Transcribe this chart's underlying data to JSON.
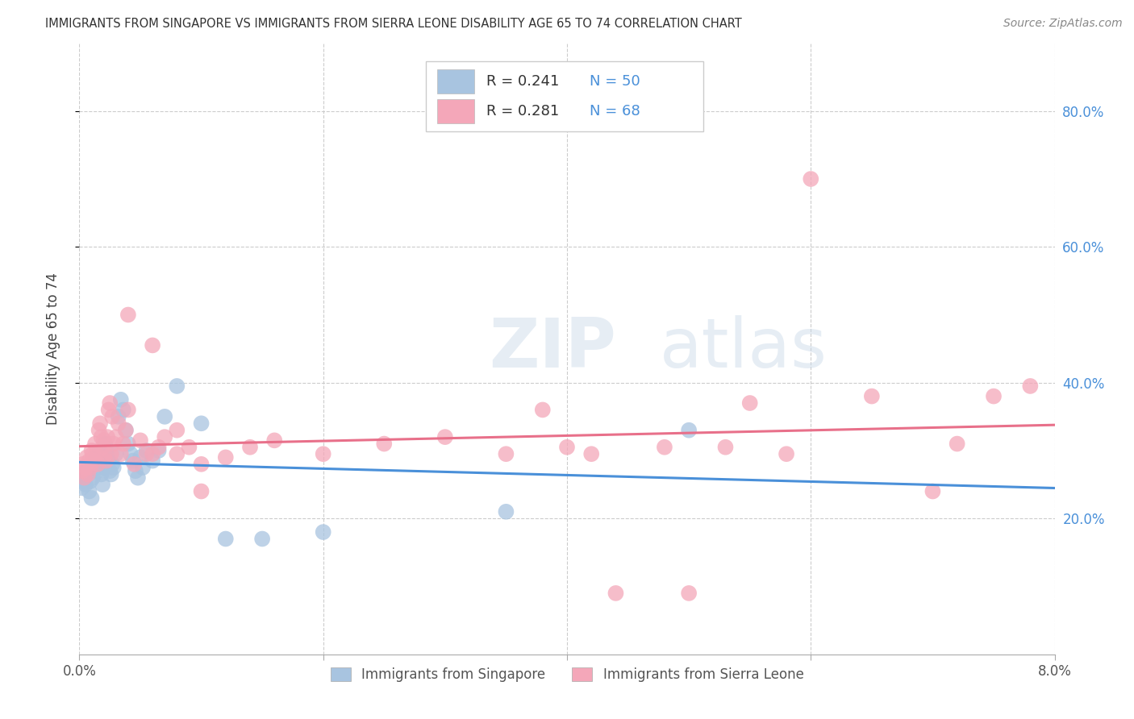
{
  "title": "IMMIGRANTS FROM SINGAPORE VS IMMIGRANTS FROM SIERRA LEONE DISABILITY AGE 65 TO 74 CORRELATION CHART",
  "source": "Source: ZipAtlas.com",
  "ylabel": "Disability Age 65 to 74",
  "singapore_R": "0.241",
  "singapore_N": "50",
  "sierra_leone_R": "0.281",
  "sierra_leone_N": "68",
  "singapore_color": "#a8c4e0",
  "sierra_leone_color": "#f4a7b9",
  "singapore_line_color": "#4a90d9",
  "sierra_leone_line_color": "#e8708a",
  "blue_text_color": "#4a90d9",
  "singapore_scatter_x": [
    0.0002,
    0.0003,
    0.0004,
    0.0005,
    0.0006,
    0.0007,
    0.0008,
    0.0009,
    0.001,
    0.0011,
    0.0012,
    0.0013,
    0.0014,
    0.0015,
    0.0016,
    0.0017,
    0.0018,
    0.0019,
    0.002,
    0.0021,
    0.0022,
    0.0023,
    0.0024,
    0.0025,
    0.0026,
    0.0027,
    0.0028,
    0.003,
    0.0032,
    0.0034,
    0.0036,
    0.0038,
    0.004,
    0.0042,
    0.0044,
    0.0046,
    0.0048,
    0.005,
    0.0052,
    0.0055,
    0.006,
    0.0065,
    0.007,
    0.008,
    0.01,
    0.012,
    0.015,
    0.02,
    0.035,
    0.05
  ],
  "singapore_scatter_y": [
    0.245,
    0.255,
    0.26,
    0.25,
    0.27,
    0.265,
    0.24,
    0.255,
    0.23,
    0.26,
    0.28,
    0.275,
    0.29,
    0.27,
    0.295,
    0.285,
    0.265,
    0.25,
    0.275,
    0.31,
    0.3,
    0.295,
    0.285,
    0.27,
    0.265,
    0.28,
    0.275,
    0.295,
    0.35,
    0.375,
    0.36,
    0.33,
    0.31,
    0.295,
    0.285,
    0.27,
    0.26,
    0.29,
    0.275,
    0.3,
    0.285,
    0.3,
    0.35,
    0.395,
    0.34,
    0.17,
    0.17,
    0.18,
    0.21,
    0.33
  ],
  "sierra_leone_scatter_x": [
    0.0002,
    0.0003,
    0.0004,
    0.0005,
    0.0006,
    0.0007,
    0.0008,
    0.0009,
    0.001,
    0.0011,
    0.0012,
    0.0013,
    0.0014,
    0.0015,
    0.0016,
    0.0017,
    0.0018,
    0.0019,
    0.002,
    0.0021,
    0.0022,
    0.0023,
    0.0024,
    0.0025,
    0.0026,
    0.0027,
    0.0028,
    0.003,
    0.0032,
    0.0034,
    0.0036,
    0.0038,
    0.004,
    0.0045,
    0.005,
    0.0055,
    0.006,
    0.0065,
    0.007,
    0.008,
    0.009,
    0.01,
    0.012,
    0.014,
    0.016,
    0.02,
    0.025,
    0.03,
    0.035,
    0.038,
    0.04,
    0.042,
    0.044,
    0.048,
    0.05,
    0.053,
    0.055,
    0.058,
    0.06,
    0.065,
    0.07,
    0.072,
    0.075,
    0.078,
    0.004,
    0.006,
    0.008,
    0.01
  ],
  "sierra_leone_scatter_y": [
    0.27,
    0.28,
    0.26,
    0.275,
    0.29,
    0.265,
    0.285,
    0.275,
    0.3,
    0.295,
    0.285,
    0.31,
    0.295,
    0.28,
    0.33,
    0.34,
    0.32,
    0.305,
    0.315,
    0.295,
    0.285,
    0.32,
    0.36,
    0.37,
    0.295,
    0.35,
    0.31,
    0.32,
    0.34,
    0.295,
    0.31,
    0.33,
    0.36,
    0.28,
    0.315,
    0.295,
    0.295,
    0.305,
    0.32,
    0.33,
    0.305,
    0.28,
    0.29,
    0.305,
    0.315,
    0.295,
    0.31,
    0.32,
    0.295,
    0.36,
    0.305,
    0.295,
    0.09,
    0.305,
    0.09,
    0.305,
    0.37,
    0.295,
    0.7,
    0.38,
    0.24,
    0.31,
    0.38,
    0.395,
    0.5,
    0.455,
    0.295,
    0.24
  ],
  "xlim": [
    0.0,
    0.08
  ],
  "ylim": [
    0.0,
    0.9
  ],
  "xticks": [
    0.0,
    0.02,
    0.04,
    0.06,
    0.08
  ],
  "yticks_right": [
    0.2,
    0.4,
    0.6,
    0.8
  ],
  "ytick_labels_right": [
    "20.0%",
    "40.0%",
    "60.0%",
    "80.0%"
  ],
  "watermark": "ZIPatlas",
  "legend_label_singapore": "Immigrants from Singapore",
  "legend_label_sierra_leone": "Immigrants from Sierra Leone"
}
